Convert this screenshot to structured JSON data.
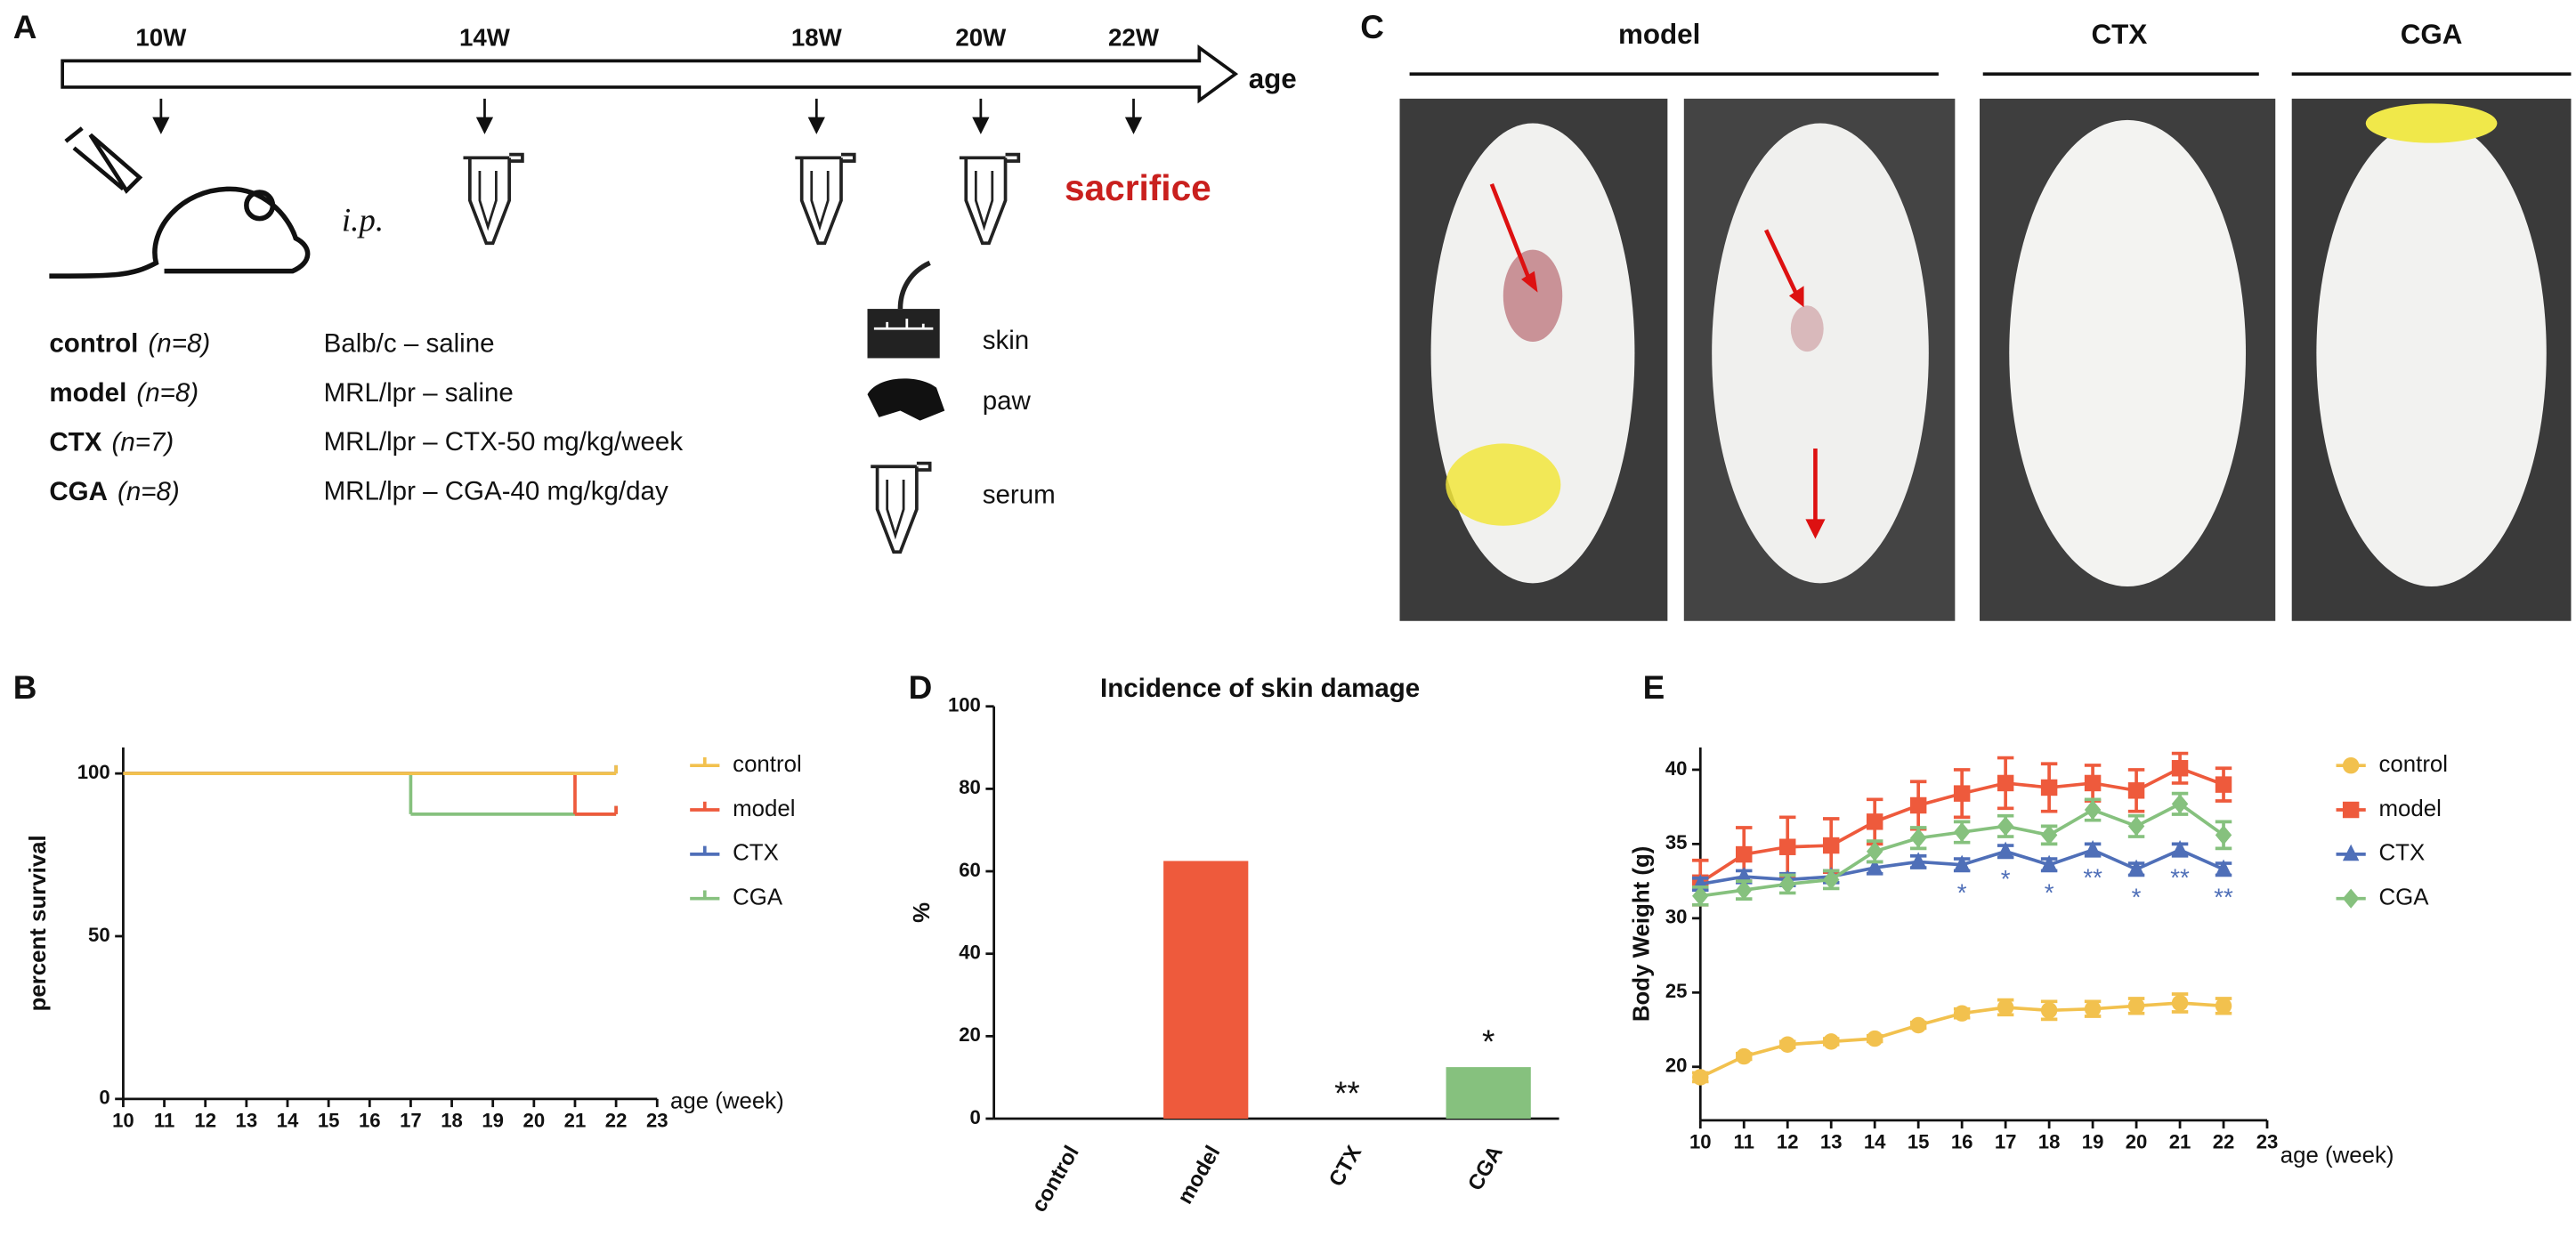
{
  "panel_a": {
    "label": "A",
    "timeline": {
      "ticks": [
        "10W",
        "14W",
        "18W",
        "20W",
        "22W"
      ],
      "axis_label": "age"
    },
    "route": "i.p.",
    "endpoint": "sacrifice",
    "groups": [
      {
        "name": "control",
        "n": "(n=8)",
        "treatment": "Balb/c – saline"
      },
      {
        "name": "model",
        "n": "(n=8)",
        "treatment": "MRL/lpr – saline"
      },
      {
        "name": "CTX",
        "n": "(n=7)",
        "treatment": "MRL/lpr – CTX-50 mg/kg/week"
      },
      {
        "name": "CGA",
        "n": "(n=8)",
        "treatment": "MRL/lpr – CGA-40 mg/kg/day"
      }
    ],
    "samples": [
      "skin",
      "paw",
      "serum"
    ]
  },
  "panel_c": {
    "label": "C",
    "groups": [
      "model",
      "CTX",
      "CGA"
    ]
  },
  "chart_data": [
    {
      "type": "line",
      "step": true,
      "panel": "B",
      "x_label": "age (week)",
      "y_label": "percent survival",
      "xlim": [
        10,
        23
      ],
      "xticks": [
        10,
        11,
        12,
        13,
        14,
        15,
        16,
        17,
        18,
        19,
        20,
        21,
        22,
        23
      ],
      "ylim": [
        0,
        108
      ],
      "yticks": [
        0,
        50,
        100
      ],
      "series": [
        {
          "name": "control",
          "color": "#f2c14e",
          "x": [
            10,
            22
          ],
          "values": [
            100,
            100
          ]
        },
        {
          "name": "model",
          "color": "#ee5a3c",
          "x": [
            10,
            21,
            22
          ],
          "values": [
            100,
            87.5,
            87.5
          ]
        },
        {
          "name": "CTX",
          "color": "#4f6fb8",
          "x": [
            10,
            22
          ],
          "values": [
            100,
            100
          ]
        },
        {
          "name": "CGA",
          "color": "#86c17e",
          "x": [
            10,
            17,
            22
          ],
          "values": [
            100,
            87.5,
            87.5
          ]
        }
      ]
    },
    {
      "type": "bar",
      "panel": "D",
      "title": "Incidence of skin damage",
      "y_label": "%",
      "categories": [
        "control",
        "model",
        "CTX",
        "CGA"
      ],
      "values": [
        0,
        62.5,
        0,
        12.5
      ],
      "colors": [
        "#f2c14e",
        "#ee5a3c",
        "#4f6fb8",
        "#86c17e"
      ],
      "annotations": [
        null,
        null,
        "**",
        "*"
      ],
      "ylim": [
        0,
        100
      ],
      "yticks": [
        0,
        20,
        40,
        60,
        80,
        100
      ]
    },
    {
      "type": "errorline",
      "panel": "E",
      "x_label": "age (week)",
      "y_label": "Body Weight (g)",
      "xlim": [
        10,
        23
      ],
      "xticks": [
        10,
        11,
        12,
        13,
        14,
        15,
        16,
        17,
        18,
        19,
        20,
        21,
        22,
        23
      ],
      "ylim": [
        16.4,
        41.5
      ],
      "yticks": [
        20,
        25,
        30,
        35,
        40
      ],
      "x": [
        10,
        11,
        12,
        13,
        14,
        15,
        16,
        17,
        18,
        19,
        20,
        21,
        22
      ],
      "series": [
        {
          "name": "control",
          "color": "#f2c14e",
          "marker": "circle",
          "values": [
            19.3,
            20.7,
            21.5,
            21.7,
            21.9,
            22.8,
            23.6,
            24.0,
            23.8,
            23.9,
            24.1,
            24.3,
            24.1
          ],
          "errors": [
            0.3,
            0.2,
            0.2,
            0.2,
            0.2,
            0.2,
            0.3,
            0.5,
            0.6,
            0.5,
            0.5,
            0.6,
            0.5
          ]
        },
        {
          "name": "model",
          "color": "#ee5a3c",
          "marker": "square",
          "values": [
            32.4,
            34.3,
            34.8,
            34.9,
            36.5,
            37.6,
            38.4,
            39.1,
            38.8,
            39.1,
            38.6,
            40.1,
            39.0
          ],
          "errors": [
            1.5,
            1.8,
            2.0,
            1.8,
            1.5,
            1.6,
            1.6,
            1.7,
            1.6,
            1.2,
            1.4,
            1.0,
            1.1
          ]
        },
        {
          "name": "CTX",
          "color": "#4f6fb8",
          "marker": "triangle",
          "values": [
            32.3,
            32.8,
            32.6,
            32.8,
            33.4,
            33.8,
            33.6,
            34.5,
            33.6,
            34.6,
            33.3,
            34.6,
            33.3
          ],
          "errors": [
            0.4,
            0.4,
            0.4,
            0.4,
            0.4,
            0.4,
            0.4,
            0.4,
            0.4,
            0.4,
            0.4,
            0.4,
            0.4
          ],
          "annotations": [
            null,
            null,
            null,
            null,
            null,
            null,
            "*",
            "*",
            "*",
            "**",
            "*",
            "**",
            "**"
          ]
        },
        {
          "name": "CGA",
          "color": "#86c17e",
          "marker": "diamond",
          "values": [
            31.5,
            31.9,
            32.3,
            32.6,
            34.5,
            35.4,
            35.8,
            36.2,
            35.6,
            37.3,
            36.2,
            37.7,
            35.6
          ],
          "errors": [
            0.6,
            0.6,
            0.6,
            0.6,
            0.7,
            0.7,
            0.7,
            0.7,
            0.6,
            0.7,
            0.7,
            0.7,
            0.9
          ]
        }
      ]
    }
  ]
}
